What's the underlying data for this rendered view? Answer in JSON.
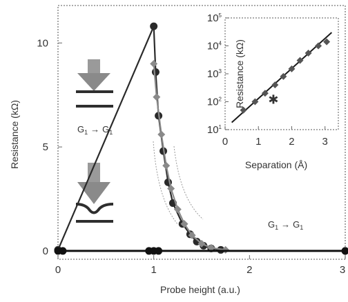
{
  "chart_data": [
    {
      "id": "main",
      "type": "line",
      "xlabel": "Probe height (a.u.)",
      "ylabel": "Resistance (kΩ)",
      "xlim": [
        0,
        3
      ],
      "ylim": [
        -0.4,
        11.8
      ],
      "x_ticks": [
        "0",
        "1",
        "2",
        "3"
      ],
      "y_ticks": [
        "0",
        "5",
        "10"
      ],
      "x_tick_values": [
        0,
        1,
        2,
        3
      ],
      "y_tick_values": [
        0,
        5,
        10
      ],
      "grid": false,
      "series": [
        {
          "color": "#2a2a2a",
          "marker": "circle",
          "x": [
            0.0,
            1.0,
            1.02,
            1.05,
            1.1,
            1.15,
            1.2,
            1.3,
            1.38,
            1.45,
            1.52,
            1.6,
            1.7
          ],
          "y": [
            0.05,
            10.8,
            8.6,
            6.5,
            4.8,
            3.3,
            2.3,
            1.3,
            0.8,
            0.45,
            0.25,
            0.12,
            0.05
          ]
        },
        {
          "color": "#8a8a8a",
          "marker": "diamond",
          "x": [
            1.0,
            1.03,
            1.08,
            1.13,
            1.18,
            1.25,
            1.32,
            1.4,
            1.5,
            1.6,
            1.75
          ],
          "y": [
            9.0,
            7.4,
            5.6,
            4.1,
            3.0,
            2.0,
            1.3,
            0.75,
            0.35,
            0.15,
            0.05
          ]
        },
        {
          "color": "#111111",
          "marker": "circle",
          "x": [
            0.0,
            0.05,
            0.95,
            1.0,
            1.05,
            3.0
          ],
          "y": [
            0.0,
            0.0,
            0.0,
            0.0,
            0.0,
            0.0
          ]
        }
      ],
      "annotations": {
        "upper_label_main": "G",
        "upper_label_sub1": "1",
        "upper_label_arrow": "→",
        "upper_label_sub2": "1",
        "lower_label_main": "G",
        "lower_label_sub1": "1",
        "lower_label_arrow": "→",
        "lower_label_sub2": "1"
      }
    },
    {
      "id": "inset",
      "type": "scatter",
      "xlabel": "Separation (Å)",
      "ylabel": "Resistance (kΩ)",
      "xlim": [
        0,
        3.4
      ],
      "ylim_log10": [
        1,
        5
      ],
      "log_y": true,
      "x_ticks": [
        "0",
        "1",
        "2",
        "3"
      ],
      "x_tick_values": [
        0,
        1,
        2,
        3
      ],
      "y_tick_labels": [
        {
          "base": "10",
          "exp": "1"
        },
        {
          "base": "10",
          "exp": "2"
        },
        {
          "base": "10",
          "exp": "3"
        },
        {
          "base": "10",
          "exp": "4"
        },
        {
          "base": "10",
          "exp": "5"
        }
      ],
      "y_tick_values": [
        1,
        2,
        3,
        4,
        5
      ],
      "points": {
        "x": [
          0.55,
          0.9,
          1.2,
          1.5,
          1.75,
          2.0,
          2.25,
          2.5,
          2.8,
          3.05
        ],
        "y": [
          50,
          100,
          200,
          400,
          800,
          1500,
          3000,
          5500,
          10000,
          14000
        ]
      },
      "outlier": {
        "x": 1.45,
        "y": 120
      },
      "fit_line": {
        "x": [
          0.2,
          3.2
        ],
        "y": [
          18,
          30000
        ]
      }
    }
  ]
}
